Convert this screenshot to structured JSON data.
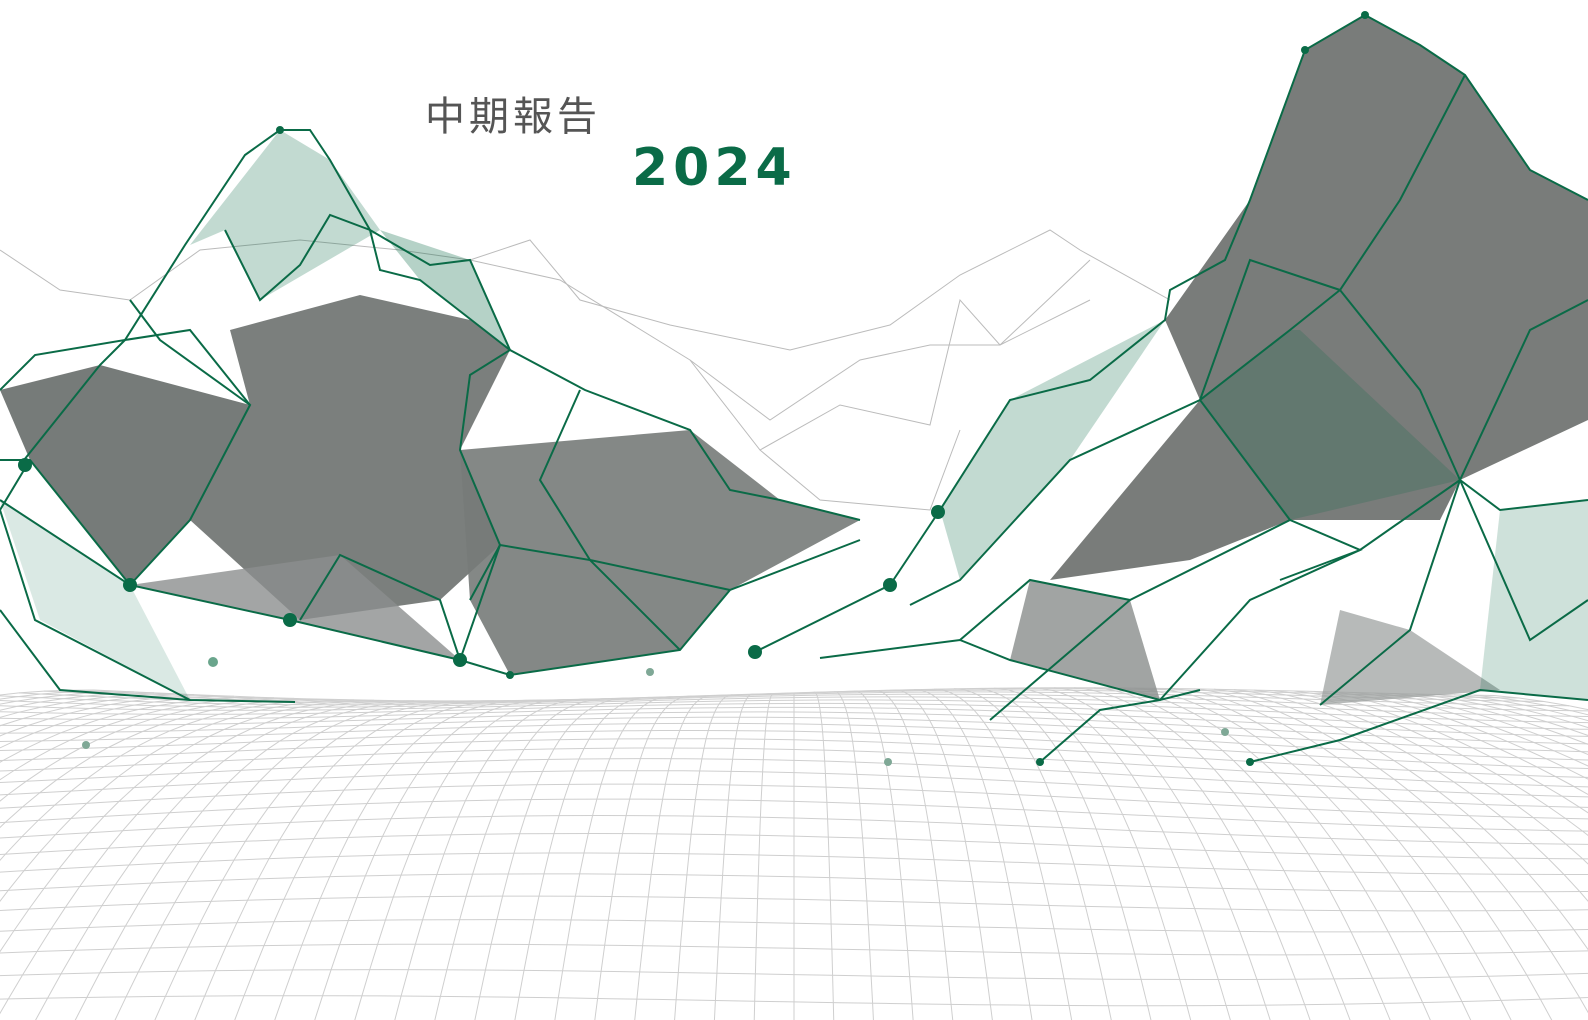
{
  "cover": {
    "title": "中期報告",
    "year": "2024"
  }
}
